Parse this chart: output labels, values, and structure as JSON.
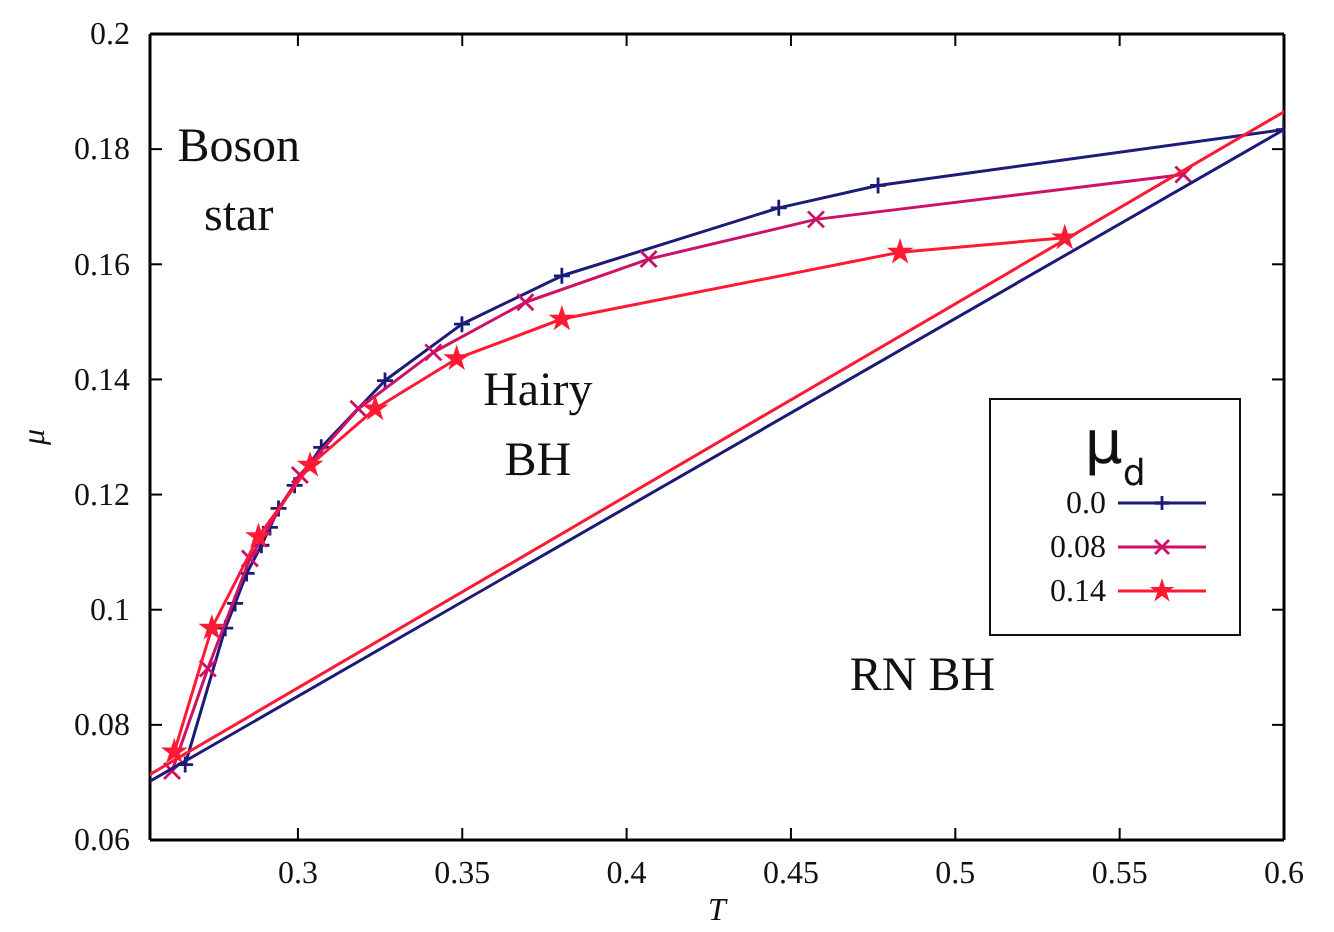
{
  "chart_data": {
    "type": "line",
    "xlabel": "T",
    "ylabel": "μ",
    "legend_title": "μ$_{d}$",
    "xlim": [
      0.255,
      0.6
    ],
    "xticks": [
      0.3,
      0.35,
      0.4,
      0.45,
      0.5,
      0.55,
      0.6
    ],
    "ylim": [
      0.06,
      0.2
    ],
    "yticks": [
      0.06,
      0.08,
      {
        "value": 0.1,
        "label": "0.1"
      },
      0.12,
      0.14,
      0.16,
      0.18,
      {
        "value": 0.2,
        "label": "0.2"
      }
    ],
    "grid": false,
    "legend": "right",
    "series": [
      {
        "name": "0.0",
        "color": "#1c1c78",
        "marker": "cross",
        "x": [
          0.2657,
          0.2779,
          0.2809,
          0.2844,
          0.2889,
          0.2915,
          0.2941,
          0.299,
          0.3071,
          0.3265,
          0.3499,
          0.3803,
          0.4463,
          0.4765,
          0.6
        ],
        "values": [
          0.0731,
          0.0968,
          0.1011,
          0.1063,
          0.1112,
          0.1143,
          0.1176,
          0.1216,
          0.1282,
          0.1398,
          0.1496,
          0.158,
          0.1698,
          0.1737,
          0.1834
        ]
      },
      {
        "name": "0.08",
        "color": "#cc1166",
        "marker": "x",
        "x": [
          0.2617,
          0.2726,
          0.2854,
          0.3006,
          0.3184,
          0.3412,
          0.3692,
          0.4067,
          0.4576,
          0.5694
        ],
        "values": [
          0.072,
          0.0898,
          0.1089,
          0.1234,
          0.1349,
          0.1447,
          0.1534,
          0.1609,
          0.1678,
          0.1756
        ]
      },
      {
        "name": "0.14",
        "color": "#ff1a33",
        "marker": "star",
        "x": [
          0.2624,
          0.2738,
          0.288,
          0.3037,
          0.3235,
          0.3483,
          0.3803,
          0.4832,
          0.5333
        ],
        "values": [
          0.0753,
          0.0968,
          0.1127,
          0.1251,
          0.1349,
          0.1436,
          0.1505,
          0.1621,
          0.1646
        ]
      },
      {
        "color": "#1c1c78",
        "marker": "none",
        "x": [
          0.255,
          0.6
        ],
        "values": [
          0.0702,
          0.1834
        ]
      },
      {
        "color": "#ff1a33",
        "marker": "none",
        "x": [
          0.255,
          0.6
        ],
        "values": [
          0.0714,
          0.1865
        ]
      }
    ],
    "annotations": [
      "Boson\nstar",
      "Hairy\nBH",
      "RN BH"
    ]
  }
}
